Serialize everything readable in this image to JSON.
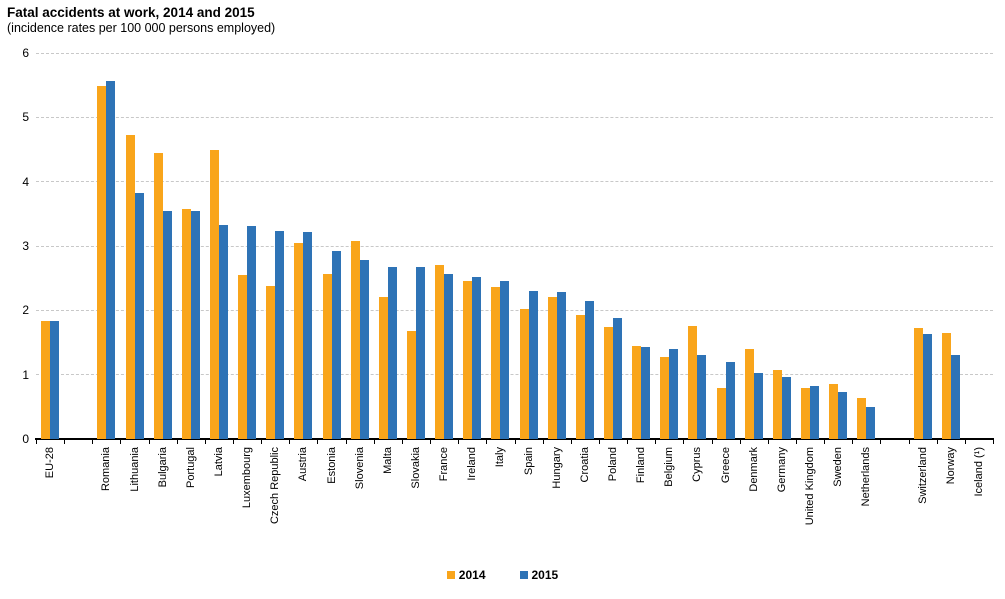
{
  "header": {
    "title": "Fatal accidents at work, 2014 and 2015",
    "subtitle": "(incidence rates per 100 000 persons employed)"
  },
  "chart_data": {
    "type": "bar",
    "title": "Fatal accidents at work, 2014 and 2015",
    "subtitle": "(incidence rates per 100 000 persons employed)",
    "ylabel": "",
    "xlabel": "",
    "ylim": [
      0,
      6
    ],
    "yticks": [
      0,
      1,
      2,
      3,
      4,
      5,
      6
    ],
    "grid": "horizontal-dashed",
    "legend_position": "bottom-center",
    "colors": {
      "gridline": "#c8c8c8",
      "axis": "#000000",
      "text": "#000000"
    },
    "series": [
      {
        "name": "2014",
        "color": "#F9A51B"
      },
      {
        "name": "2015",
        "color": "#2E73B6"
      }
    ],
    "groups": [
      {
        "label": "EU-28",
        "values": [
          1.83,
          1.83
        ]
      },
      {
        "spacer": true
      },
      {
        "label": "Romania",
        "values": [
          5.49,
          5.57
        ]
      },
      {
        "label": "Lithuania",
        "values": [
          4.72,
          3.83
        ]
      },
      {
        "label": "Bulgaria",
        "values": [
          4.45,
          3.55
        ]
      },
      {
        "label": "Portugal",
        "values": [
          3.57,
          3.55
        ]
      },
      {
        "label": "Latvia",
        "values": [
          4.5,
          3.32
        ]
      },
      {
        "label": "Luxembourg",
        "values": [
          2.55,
          3.31
        ]
      },
      {
        "label": "Czech Republic",
        "values": [
          2.38,
          3.24
        ]
      },
      {
        "label": "Austria",
        "values": [
          3.05,
          3.21
        ]
      },
      {
        "label": "Estonia",
        "values": [
          2.57,
          2.93
        ]
      },
      {
        "label": "Slovenia",
        "values": [
          3.08,
          2.79
        ]
      },
      {
        "label": "Malta",
        "values": [
          2.2,
          2.68
        ]
      },
      {
        "label": "Slovakia",
        "values": [
          1.68,
          2.67
        ]
      },
      {
        "label": "France",
        "values": [
          2.7,
          2.57
        ]
      },
      {
        "label": "Ireland",
        "values": [
          2.45,
          2.52
        ]
      },
      {
        "label": "Italy",
        "values": [
          2.36,
          2.45
        ]
      },
      {
        "label": "Spain",
        "values": [
          2.02,
          2.3
        ]
      },
      {
        "label": "Hungary",
        "values": [
          2.21,
          2.28
        ]
      },
      {
        "label": "Croatia",
        "values": [
          1.93,
          2.15
        ]
      },
      {
        "label": "Poland",
        "values": [
          1.74,
          1.88
        ]
      },
      {
        "label": "Finland",
        "values": [
          1.44,
          1.43
        ]
      },
      {
        "label": "Belgium",
        "values": [
          1.28,
          1.4
        ]
      },
      {
        "label": "Cyprus",
        "values": [
          1.75,
          1.3
        ]
      },
      {
        "label": "Greece",
        "values": [
          0.79,
          1.19
        ]
      },
      {
        "label": "Denmark",
        "values": [
          1.4,
          1.02
        ]
      },
      {
        "label": "Germany",
        "values": [
          1.08,
          0.97
        ]
      },
      {
        "label": "United Kingdom",
        "values": [
          0.8,
          0.83
        ]
      },
      {
        "label": "Sweden",
        "values": [
          0.85,
          0.73
        ]
      },
      {
        "label": "Netherlands",
        "values": [
          0.63,
          0.49
        ]
      },
      {
        "spacer": true
      },
      {
        "label": "Switzerland",
        "values": [
          1.72,
          1.63
        ]
      },
      {
        "label": "Norway",
        "values": [
          1.65,
          1.3
        ]
      },
      {
        "label": "Iceland (¹)",
        "values": [
          null,
          null
        ]
      }
    ]
  }
}
